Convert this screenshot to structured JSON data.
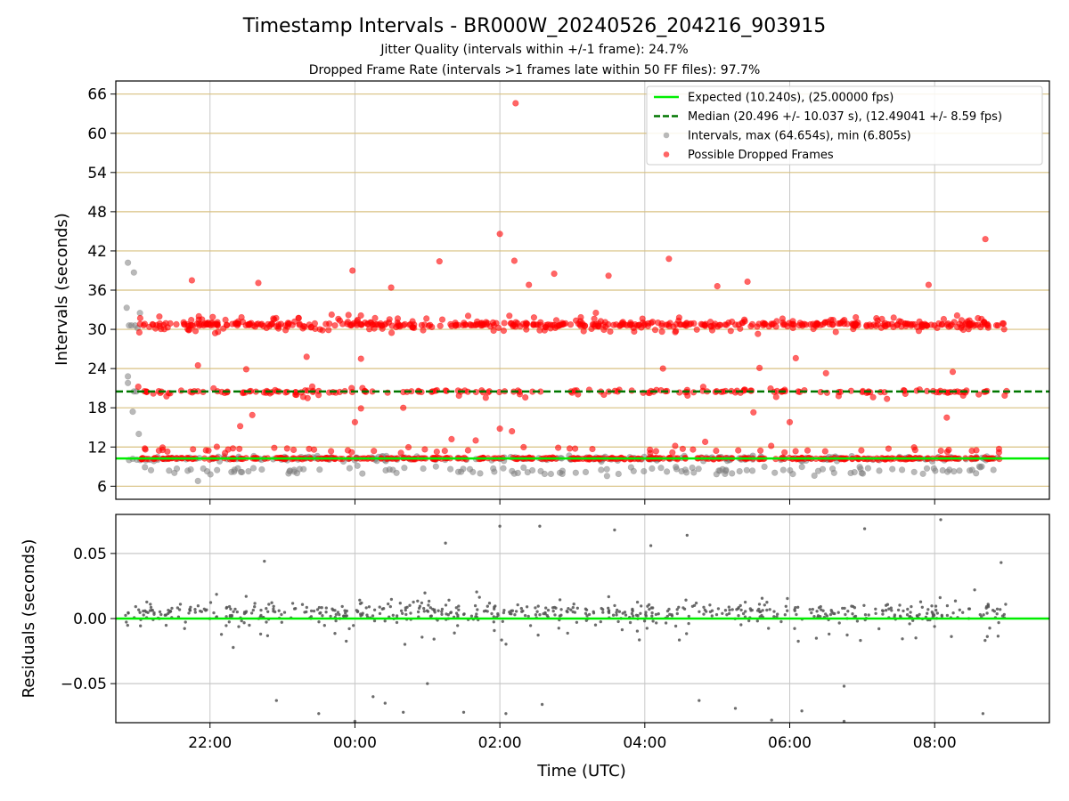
{
  "title": "Timestamp Intervals - BR000W_20240526_204216_903915",
  "subtitle_1": "Jitter Quality (intervals within +/-1 frame): 24.7%",
  "subtitle_2": "Dropped Frame Rate (intervals >1 frames late within 50 FF files): 97.7%",
  "colors": {
    "expected_line": "#00ee00",
    "median_line": "#007700",
    "intervals_points": "#808080",
    "dropped_points": "#ff0000",
    "residual_points": "#555555",
    "hgrid_top": "#d8c080",
    "grid": "#c8c8c8"
  },
  "chart_data": [
    {
      "type": "scatter",
      "panel": "top",
      "ylabel": "Intervals (seconds)",
      "xlabel": "",
      "xlim": [
        "20:42",
        "09:35"
      ],
      "ylim": [
        4,
        68
      ],
      "yticks": [
        6,
        12,
        18,
        24,
        30,
        36,
        42,
        48,
        54,
        60,
        66
      ],
      "xticks": [
        "22:00",
        "00:00",
        "02:00",
        "04:00",
        "06:00",
        "08:00"
      ],
      "grid": true,
      "legend_position": "top-right",
      "legend": [
        "Expected (10.240s), (25.00000 fps)",
        "Median (20.496 +/- 10.037 s), (12.49041 +/- 8.59 fps)",
        "Intervals, max (64.654s), min (6.805s)",
        "Possible Dropped Frames"
      ],
      "expected_interval": 10.24,
      "median_interval": 20.496,
      "series": [
        {
          "name": "Intervals, max (64.654s), min (6.805s)",
          "clusters": [
            {
              "t_start": "20:58",
              "t_end": "09:00",
              "y": 10.24,
              "spread": 0.7,
              "count": 220
            },
            {
              "t_start": "21:00",
              "t_end": "09:00",
              "y": 8.4,
              "spread": 1.2,
              "count": 130
            }
          ],
          "points": [
            {
              "t": "20:52",
              "y": 40.2
            },
            {
              "t": "20:57",
              "y": 38.7
            },
            {
              "t": "20:51",
              "y": 33.3
            },
            {
              "t": "20:53",
              "y": 30.6
            },
            {
              "t": "20:55",
              "y": 30.6
            },
            {
              "t": "20:58",
              "y": 30.6
            },
            {
              "t": "21:00",
              "y": 30.2
            },
            {
              "t": "21:02",
              "y": 32.5
            },
            {
              "t": "20:52",
              "y": 22.8
            },
            {
              "t": "20:52",
              "y": 21.8
            },
            {
              "t": "20:57",
              "y": 20.5
            },
            {
              "t": "20:59",
              "y": 20.5
            },
            {
              "t": "20:56",
              "y": 17.4
            },
            {
              "t": "21:01",
              "y": 14.0
            },
            {
              "t": "20:53",
              "y": 10.0
            },
            {
              "t": "20:56",
              "y": 10.2
            },
            {
              "t": "21:50",
              "y": 6.8
            }
          ]
        },
        {
          "name": "Possible Dropped Frames",
          "clusters": [
            {
              "t_start": "21:00",
              "t_end": "09:00",
              "y": 30.72,
              "spread": 0.5,
              "count": 320
            },
            {
              "t_start": "21:00",
              "t_end": "09:00",
              "y": 30.72,
              "spread": 2.6,
              "count": 240
            },
            {
              "t_start": "21:00",
              "t_end": "09:00",
              "y": 20.48,
              "spread": 0.4,
              "count": 140
            },
            {
              "t_start": "21:00",
              "t_end": "09:00",
              "y": 20.48,
              "spread": 2.2,
              "count": 60
            },
            {
              "t_start": "21:00",
              "t_end": "09:00",
              "y": 10.24,
              "spread": 0.25,
              "count": 360
            },
            {
              "t_start": "21:00",
              "t_end": "09:00",
              "y": 11.6,
              "spread": 0.9,
              "count": 60
            }
          ],
          "points": [
            {
              "t": "02:13",
              "y": 64.6
            },
            {
              "t": "02:00",
              "y": 44.6
            },
            {
              "t": "08:42",
              "y": 43.8
            },
            {
              "t": "04:20",
              "y": 40.8
            },
            {
              "t": "01:10",
              "y": 40.4
            },
            {
              "t": "02:12",
              "y": 40.5
            },
            {
              "t": "23:58",
              "y": 39.0
            },
            {
              "t": "02:45",
              "y": 38.5
            },
            {
              "t": "03:30",
              "y": 38.2
            },
            {
              "t": "21:45",
              "y": 37.5
            },
            {
              "t": "22:40",
              "y": 37.1
            },
            {
              "t": "07:55",
              "y": 36.8
            },
            {
              "t": "05:00",
              "y": 36.6
            },
            {
              "t": "00:30",
              "y": 36.4
            },
            {
              "t": "02:24",
              "y": 36.8
            },
            {
              "t": "05:25",
              "y": 37.3
            },
            {
              "t": "23:20",
              "y": 25.8
            },
            {
              "t": "00:05",
              "y": 25.5
            },
            {
              "t": "04:15",
              "y": 24.0
            },
            {
              "t": "05:35",
              "y": 24.1
            },
            {
              "t": "06:05",
              "y": 25.6
            },
            {
              "t": "06:30",
              "y": 23.3
            },
            {
              "t": "08:15",
              "y": 23.5
            },
            {
              "t": "21:50",
              "y": 24.5
            },
            {
              "t": "22:30",
              "y": 23.9
            },
            {
              "t": "05:30",
              "y": 17.3
            },
            {
              "t": "06:00",
              "y": 15.8
            },
            {
              "t": "08:10",
              "y": 16.5
            },
            {
              "t": "22:25",
              "y": 15.2
            },
            {
              "t": "22:35",
              "y": 16.9
            },
            {
              "t": "00:00",
              "y": 15.8
            },
            {
              "t": "02:00",
              "y": 14.8
            },
            {
              "t": "02:10",
              "y": 14.4
            },
            {
              "t": "01:20",
              "y": 13.2
            },
            {
              "t": "01:40",
              "y": 13.0
            },
            {
              "t": "04:50",
              "y": 12.8
            },
            {
              "t": "00:05",
              "y": 17.9
            },
            {
              "t": "00:40",
              "y": 18.0
            }
          ]
        },
        {
          "name": "Expected (10.240s), (25.00000 fps)",
          "line_y": 10.24
        },
        {
          "name": "Median (20.496 +/- 10.037 s), (12.49041 +/- 8.59 fps)",
          "line_y": 20.496
        }
      ]
    },
    {
      "type": "scatter",
      "panel": "bottom",
      "ylabel": "Residuals (seconds)",
      "xlabel": "Time (UTC)",
      "xlim": [
        "20:42",
        "09:35"
      ],
      "ylim": [
        -0.08,
        0.08
      ],
      "yticks": [
        -0.05,
        0.0,
        0.05
      ],
      "ytick_labels": [
        "−0.05",
        "0.00",
        "0.05"
      ],
      "xticks": [
        "22:00",
        "00:00",
        "02:00",
        "04:00",
        "06:00",
        "08:00"
      ],
      "grid": true,
      "zero_line_y": 0,
      "series": [
        {
          "name": "",
          "clusters": [
            {
              "t_start": "20:50",
              "t_end": "09:00",
              "y": 0.005,
              "spread": 0.012,
              "count": 450
            },
            {
              "t_start": "20:50",
              "t_end": "09:00",
              "y": 0.0,
              "spread": 0.035,
              "count": 180
            }
          ],
          "points": [
            {
              "t": "08:05",
              "y": 0.076
            },
            {
              "t": "02:00",
              "y": 0.071
            },
            {
              "t": "02:33",
              "y": 0.071
            },
            {
              "t": "07:02",
              "y": 0.069
            },
            {
              "t": "03:35",
              "y": 0.068
            },
            {
              "t": "04:05",
              "y": 0.056
            },
            {
              "t": "04:35",
              "y": 0.064
            },
            {
              "t": "01:15",
              "y": 0.058
            },
            {
              "t": "22:45",
              "y": 0.044
            },
            {
              "t": "08:55",
              "y": 0.043
            },
            {
              "t": "05:45",
              "y": -0.078
            },
            {
              "t": "06:45",
              "y": -0.079
            },
            {
              "t": "00:00",
              "y": -0.079
            },
            {
              "t": "01:30",
              "y": -0.072
            },
            {
              "t": "02:05",
              "y": -0.073
            },
            {
              "t": "23:30",
              "y": -0.073
            },
            {
              "t": "00:40",
              "y": -0.072
            },
            {
              "t": "08:40",
              "y": -0.073
            },
            {
              "t": "05:15",
              "y": -0.069
            },
            {
              "t": "06:10",
              "y": -0.071
            },
            {
              "t": "02:35",
              "y": -0.066
            },
            {
              "t": "04:45",
              "y": -0.063
            },
            {
              "t": "22:55",
              "y": -0.063
            },
            {
              "t": "06:45",
              "y": -0.052
            },
            {
              "t": "01:00",
              "y": -0.05
            },
            {
              "t": "00:15",
              "y": -0.06
            },
            {
              "t": "00:25",
              "y": -0.065
            }
          ]
        },
        {
          "name": "",
          "line_y": 0
        }
      ]
    }
  ]
}
